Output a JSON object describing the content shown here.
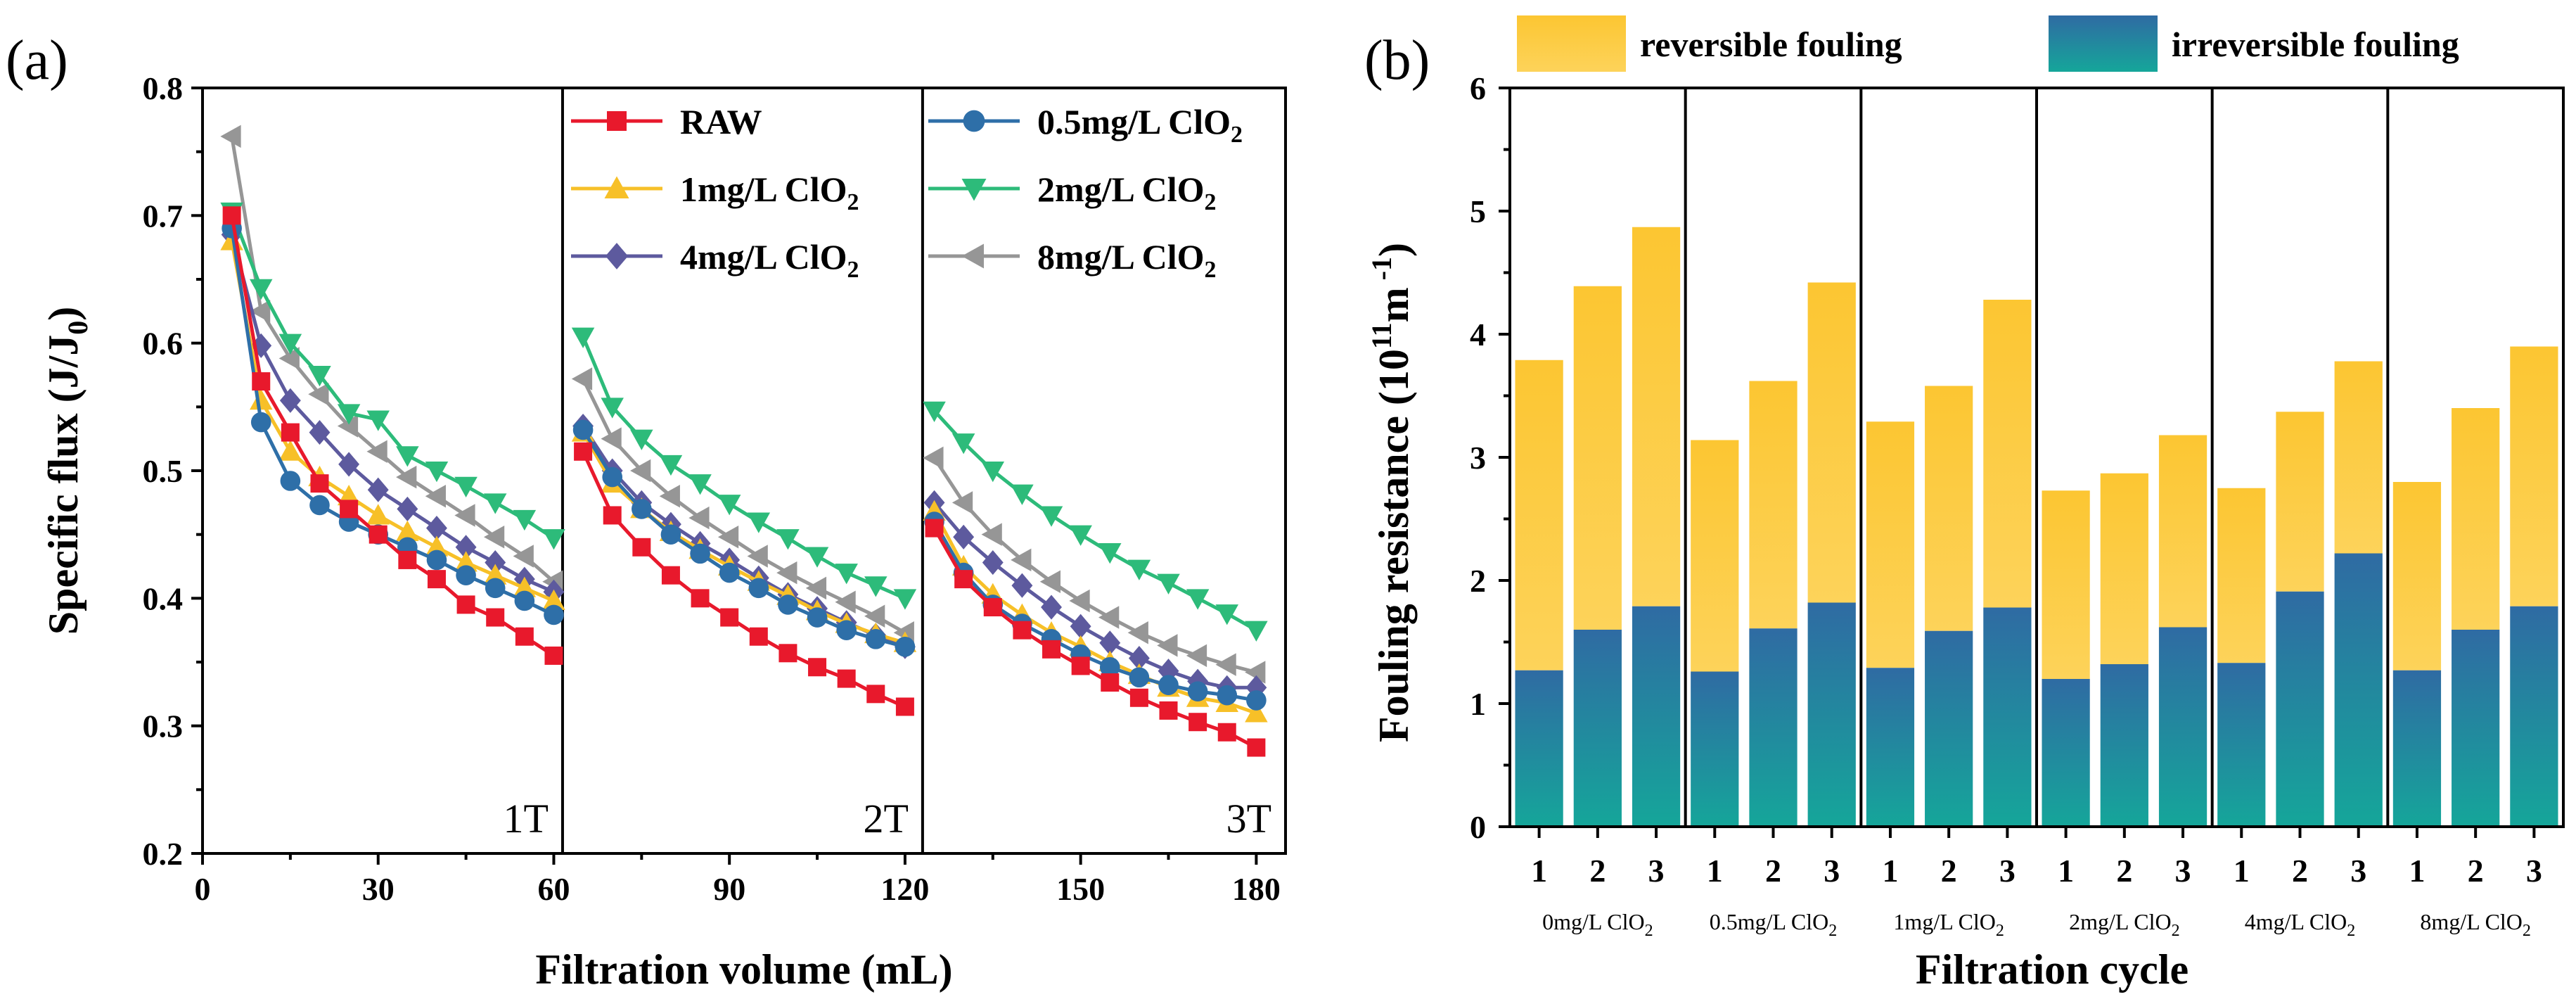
{
  "chart_data": [
    {
      "panel": "(a)",
      "type": "line",
      "xlabel": "Filtration volume (mL)",
      "ylabel_main": "Specific flux (J/J",
      "ylabel_sub": "0",
      "ylabel_tail": ")",
      "xlim": [
        0,
        185
      ],
      "ylim": [
        0.2,
        0.8
      ],
      "xticks": [
        0,
        30,
        60,
        90,
        120,
        150,
        180
      ],
      "yticks": [
        0.2,
        0.3,
        0.4,
        0.5,
        0.6,
        0.7,
        0.8
      ],
      "ytick_labels": [
        "0.2",
        "0.3",
        "0.4",
        "0.5",
        "0.6",
        "0.7",
        "0.8"
      ],
      "dividers": [
        61.5,
        123
      ],
      "segments": [
        {
          "label": "1T",
          "x": [
            5,
            10,
            15,
            20,
            25,
            30,
            35,
            40,
            45,
            50,
            55,
            60
          ]
        },
        {
          "label": "2T",
          "x": [
            65,
            70,
            75,
            80,
            85,
            90,
            95,
            100,
            105,
            110,
            115,
            120
          ]
        },
        {
          "label": "3T",
          "x": [
            125,
            130,
            135,
            140,
            145,
            150,
            155,
            160,
            165,
            170,
            175,
            180
          ]
        }
      ],
      "series": [
        {
          "name": "RAW",
          "sub": "",
          "color": "#e8192c",
          "marker": "square",
          "values": [
            [
              0.7,
              0.57,
              0.53,
              0.49,
              0.47,
              0.45,
              0.43,
              0.415,
              0.395,
              0.385,
              0.37,
              0.355
            ],
            [
              0.515,
              0.465,
              0.44,
              0.418,
              0.4,
              0.385,
              0.37,
              0.357,
              0.346,
              0.337,
              0.325,
              0.315
            ],
            [
              0.455,
              0.415,
              0.393,
              0.375,
              0.36,
              0.347,
              0.334,
              0.322,
              0.312,
              0.303,
              0.295,
              0.283
            ]
          ]
        },
        {
          "name": "0.5mg/L ClO",
          "sub": "2",
          "color": "#2e6fa8",
          "marker": "circle",
          "values": [
            [
              0.69,
              0.538,
              0.492,
              0.473,
              0.46,
              0.45,
              0.44,
              0.43,
              0.418,
              0.408,
              0.398,
              0.387
            ],
            [
              0.532,
              0.495,
              0.47,
              0.45,
              0.435,
              0.42,
              0.408,
              0.395,
              0.385,
              0.375,
              0.368,
              0.362
            ],
            [
              0.46,
              0.42,
              0.395,
              0.38,
              0.368,
              0.356,
              0.346,
              0.338,
              0.332,
              0.327,
              0.324,
              0.32
            ]
          ]
        },
        {
          "name": "1mg/L ClO",
          "sub": "2",
          "color": "#f7c028",
          "marker": "triangle-up",
          "values": [
            [
              0.68,
              0.555,
              0.515,
              0.495,
              0.48,
              0.465,
              0.452,
              0.44,
              0.428,
              0.418,
              0.408,
              0.398
            ],
            [
              0.53,
              0.49,
              0.47,
              0.452,
              0.438,
              0.425,
              0.413,
              0.402,
              0.39,
              0.38,
              0.372,
              0.365
            ],
            [
              0.468,
              0.425,
              0.403,
              0.387,
              0.373,
              0.362,
              0.35,
              0.34,
              0.33,
              0.322,
              0.318,
              0.31
            ]
          ]
        },
        {
          "name": "2mg/L ClO",
          "sub": "2",
          "color": "#2dbb7a",
          "marker": "triangle-down",
          "values": [
            [
              0.703,
              0.643,
              0.6,
              0.575,
              0.545,
              0.54,
              0.512,
              0.5,
              0.488,
              0.475,
              0.462,
              0.447
            ],
            [
              0.605,
              0.55,
              0.525,
              0.505,
              0.49,
              0.474,
              0.46,
              0.447,
              0.433,
              0.42,
              0.41,
              0.4
            ],
            [
              0.547,
              0.522,
              0.5,
              0.482,
              0.465,
              0.45,
              0.436,
              0.423,
              0.412,
              0.4,
              0.388,
              0.375
            ]
          ]
        },
        {
          "name": "4mg/L ClO",
          "sub": "2",
          "color": "#5d5a9e",
          "marker": "diamond",
          "values": [
            [
              0.685,
              0.598,
              0.555,
              0.53,
              0.505,
              0.485,
              0.47,
              0.455,
              0.44,
              0.428,
              0.415,
              0.405
            ],
            [
              0.535,
              0.5,
              0.475,
              0.458,
              0.443,
              0.43,
              0.416,
              0.403,
              0.392,
              0.381,
              0.371,
              0.362
            ],
            [
              0.475,
              0.448,
              0.428,
              0.41,
              0.393,
              0.378,
              0.365,
              0.353,
              0.343,
              0.335,
              0.33,
              0.33
            ]
          ]
        },
        {
          "name": "8mg/L ClO",
          "sub": "2",
          "color": "#969696",
          "marker": "triangle-left",
          "values": [
            [
              0.762,
              0.625,
              0.588,
              0.56,
              0.535,
              0.515,
              0.495,
              0.48,
              0.465,
              0.448,
              0.433,
              0.413
            ],
            [
              0.572,
              0.525,
              0.5,
              0.48,
              0.463,
              0.448,
              0.433,
              0.42,
              0.408,
              0.397,
              0.386,
              0.373
            ],
            [
              0.51,
              0.475,
              0.45,
              0.43,
              0.413,
              0.398,
              0.385,
              0.373,
              0.363,
              0.355,
              0.348,
              0.342
            ]
          ]
        }
      ]
    },
    {
      "panel": "(b)",
      "type": "bar",
      "stacked": true,
      "xlabel": "Filtration cycle",
      "ylabel_main": "Fouling resistance (10",
      "ylabel_sup": "11",
      "ylabel_tail": "m",
      "ylabel_sup2": " -1",
      "ylabel_end": ")",
      "ylim": [
        0,
        6
      ],
      "yticks": [
        0,
        1,
        2,
        3,
        4,
        5,
        6
      ],
      "legend": [
        {
          "label": "reversible fouling",
          "color": "#fcc632"
        },
        {
          "label": "irreversible fouling",
          "color": "#1f8f9a"
        }
      ],
      "groups": [
        {
          "label": "0mg/L ClO",
          "sub": "2",
          "cycles": [
            "1",
            "2",
            "3"
          ],
          "irreversible": [
            1.27,
            1.6,
            1.79
          ],
          "total": [
            3.79,
            4.39,
            4.87
          ]
        },
        {
          "label": "0.5mg/L ClO",
          "sub": "2",
          "cycles": [
            "1",
            "2",
            "3"
          ],
          "irreversible": [
            1.26,
            1.61,
            1.82
          ],
          "total": [
            3.14,
            3.62,
            4.42
          ]
        },
        {
          "label": "1mg/L ClO",
          "sub": "2",
          "cycles": [
            "1",
            "2",
            "3"
          ],
          "irreversible": [
            1.29,
            1.59,
            1.78
          ],
          "total": [
            3.29,
            3.58,
            4.28
          ]
        },
        {
          "label": "2mg/L ClO",
          "sub": "2",
          "cycles": [
            "1",
            "2",
            "3"
          ],
          "irreversible": [
            1.2,
            1.32,
            1.62
          ],
          "total": [
            2.73,
            2.87,
            3.18
          ]
        },
        {
          "label": "4mg/L ClO",
          "sub": "2",
          "cycles": [
            "1",
            "2",
            "3"
          ],
          "irreversible": [
            1.33,
            1.91,
            2.22
          ],
          "total": [
            2.75,
            3.37,
            3.78
          ]
        },
        {
          "label": "8mg/L ClO",
          "sub": "2",
          "cycles": [
            "1",
            "2",
            "3"
          ],
          "irreversible": [
            1.27,
            1.6,
            1.79
          ],
          "total": [
            2.8,
            3.4,
            3.9
          ]
        }
      ]
    }
  ]
}
